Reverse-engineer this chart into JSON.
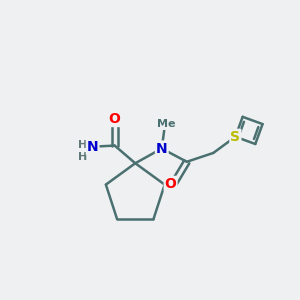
{
  "bg_color": "#eef0f2",
  "bond_color": "#4a7070",
  "bond_width": 1.8,
  "atom_colors": {
    "O": "#ff0000",
    "N": "#0000cc",
    "S": "#bbbb00",
    "C": "#4a7070",
    "H": "#607878"
  },
  "figsize": [
    3.0,
    3.0
  ],
  "dpi": 100
}
